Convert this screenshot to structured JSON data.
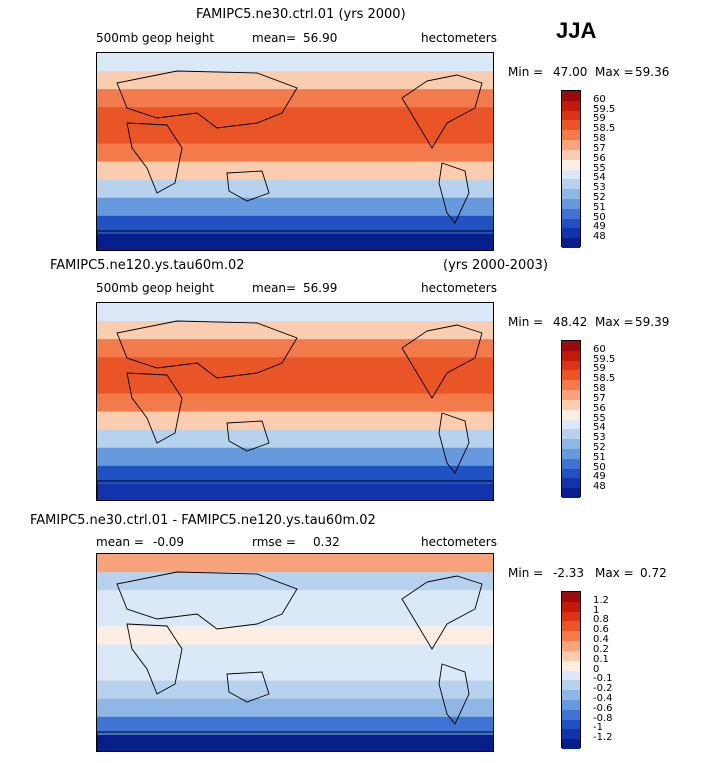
{
  "season": "JJA",
  "units": "hectometers",
  "panels": [
    {
      "title": "FAMIPC5.ne30.ctrl.01 (yrs 2000)",
      "title_right": "",
      "field": "500mb geop height",
      "stat1_label": "mean=",
      "stat1_value": "56.90",
      "stat2_label": "",
      "stat2_value": "",
      "minmax": {
        "min_label": "Min =",
        "min": "47.00",
        "max_label": "Max =",
        "max": "59.36"
      },
      "colorbar": {
        "labels": [
          "60",
          "59.5",
          "59",
          "58.5",
          "58",
          "57",
          "56",
          "55",
          "54",
          "53",
          "52",
          "51",
          "50",
          "49",
          "48"
        ],
        "colors": [
          "#9e0a0a",
          "#c11a0a",
          "#d93416",
          "#ea5528",
          "#f27a4b",
          "#f7a47c",
          "#fbcdb0",
          "#fdeee3",
          "#dbe8f7",
          "#b7d2ef",
          "#8fb7e6",
          "#6699dd",
          "#3f74d4",
          "#2251c4",
          "#1233ac",
          "#071f8a"
        ]
      },
      "map_bands": [
        {
          "color": "#dbe8f7"
        },
        {
          "color": "#fbcdb0"
        },
        {
          "color": "#f27a4b"
        },
        {
          "color": "#ea5528"
        },
        {
          "color": "#ea5528"
        },
        {
          "color": "#f27a4b"
        },
        {
          "color": "#fbcdb0"
        },
        {
          "color": "#b7d2ef"
        },
        {
          "color": "#6699dd"
        },
        {
          "color": "#2251c4"
        },
        {
          "color": "#071f8a"
        }
      ]
    },
    {
      "title": "FAMIPC5.ne120.ys.tau60m.02",
      "title_right": "(yrs 2000-2003)",
      "field": "500mb geop height",
      "stat1_label": "mean=",
      "stat1_value": "56.99",
      "stat2_label": "",
      "stat2_value": "",
      "minmax": {
        "min_label": "Min =",
        "min": "48.42",
        "max_label": "Max =",
        "max": "59.39"
      },
      "colorbar": {
        "labels": [
          "60",
          "59.5",
          "59",
          "58.5",
          "58",
          "57",
          "56",
          "55",
          "54",
          "53",
          "52",
          "51",
          "50",
          "49",
          "48"
        ],
        "colors": [
          "#9e0a0a",
          "#c11a0a",
          "#d93416",
          "#ea5528",
          "#f27a4b",
          "#f7a47c",
          "#fbcdb0",
          "#fdeee3",
          "#dbe8f7",
          "#b7d2ef",
          "#8fb7e6",
          "#6699dd",
          "#3f74d4",
          "#2251c4",
          "#1233ac",
          "#071f8a"
        ]
      },
      "map_bands": [
        {
          "color": "#dbe8f7"
        },
        {
          "color": "#fbcdb0"
        },
        {
          "color": "#f27a4b"
        },
        {
          "color": "#ea5528"
        },
        {
          "color": "#ea5528"
        },
        {
          "color": "#f27a4b"
        },
        {
          "color": "#fbcdb0"
        },
        {
          "color": "#b7d2ef"
        },
        {
          "color": "#6699dd"
        },
        {
          "color": "#2251c4"
        },
        {
          "color": "#1233ac"
        }
      ]
    },
    {
      "title": "FAMIPC5.ne30.ctrl.01 - FAMIPC5.ne120.ys.tau60m.02",
      "title_right": "",
      "field": "",
      "stat1_label": "mean =",
      "stat1_value": "-0.09",
      "stat2_label": "rmse =",
      "stat2_value": "0.32",
      "minmax": {
        "min_label": "Min =",
        "min": "-2.33",
        "max_label": "Max =",
        "max": "0.72"
      },
      "colorbar": {
        "labels": [
          "1.2",
          "1",
          "0.8",
          "0.6",
          "0.4",
          "0.2",
          "0.1",
          "0",
          "-0.1",
          "-0.2",
          "-0.4",
          "-0.6",
          "-0.8",
          "-1",
          "-1.2"
        ],
        "colors": [
          "#9e0a0a",
          "#c11a0a",
          "#d93416",
          "#ea5528",
          "#f27a4b",
          "#f7a47c",
          "#fbcdb0",
          "#fdeee3",
          "#dbe8f7",
          "#b7d2ef",
          "#8fb7e6",
          "#6699dd",
          "#3f74d4",
          "#2251c4",
          "#1233ac",
          "#071f8a"
        ]
      },
      "map_bands": [
        {
          "color": "#f7a47c"
        },
        {
          "color": "#b7d2ef"
        },
        {
          "color": "#dbe8f7"
        },
        {
          "color": "#dbe8f7"
        },
        {
          "color": "#fdeee3"
        },
        {
          "color": "#dbe8f7"
        },
        {
          "color": "#dbe8f7"
        },
        {
          "color": "#b7d2ef"
        },
        {
          "color": "#8fb7e6"
        },
        {
          "color": "#3f74d4"
        },
        {
          "color": "#071f8a"
        }
      ]
    }
  ]
}
